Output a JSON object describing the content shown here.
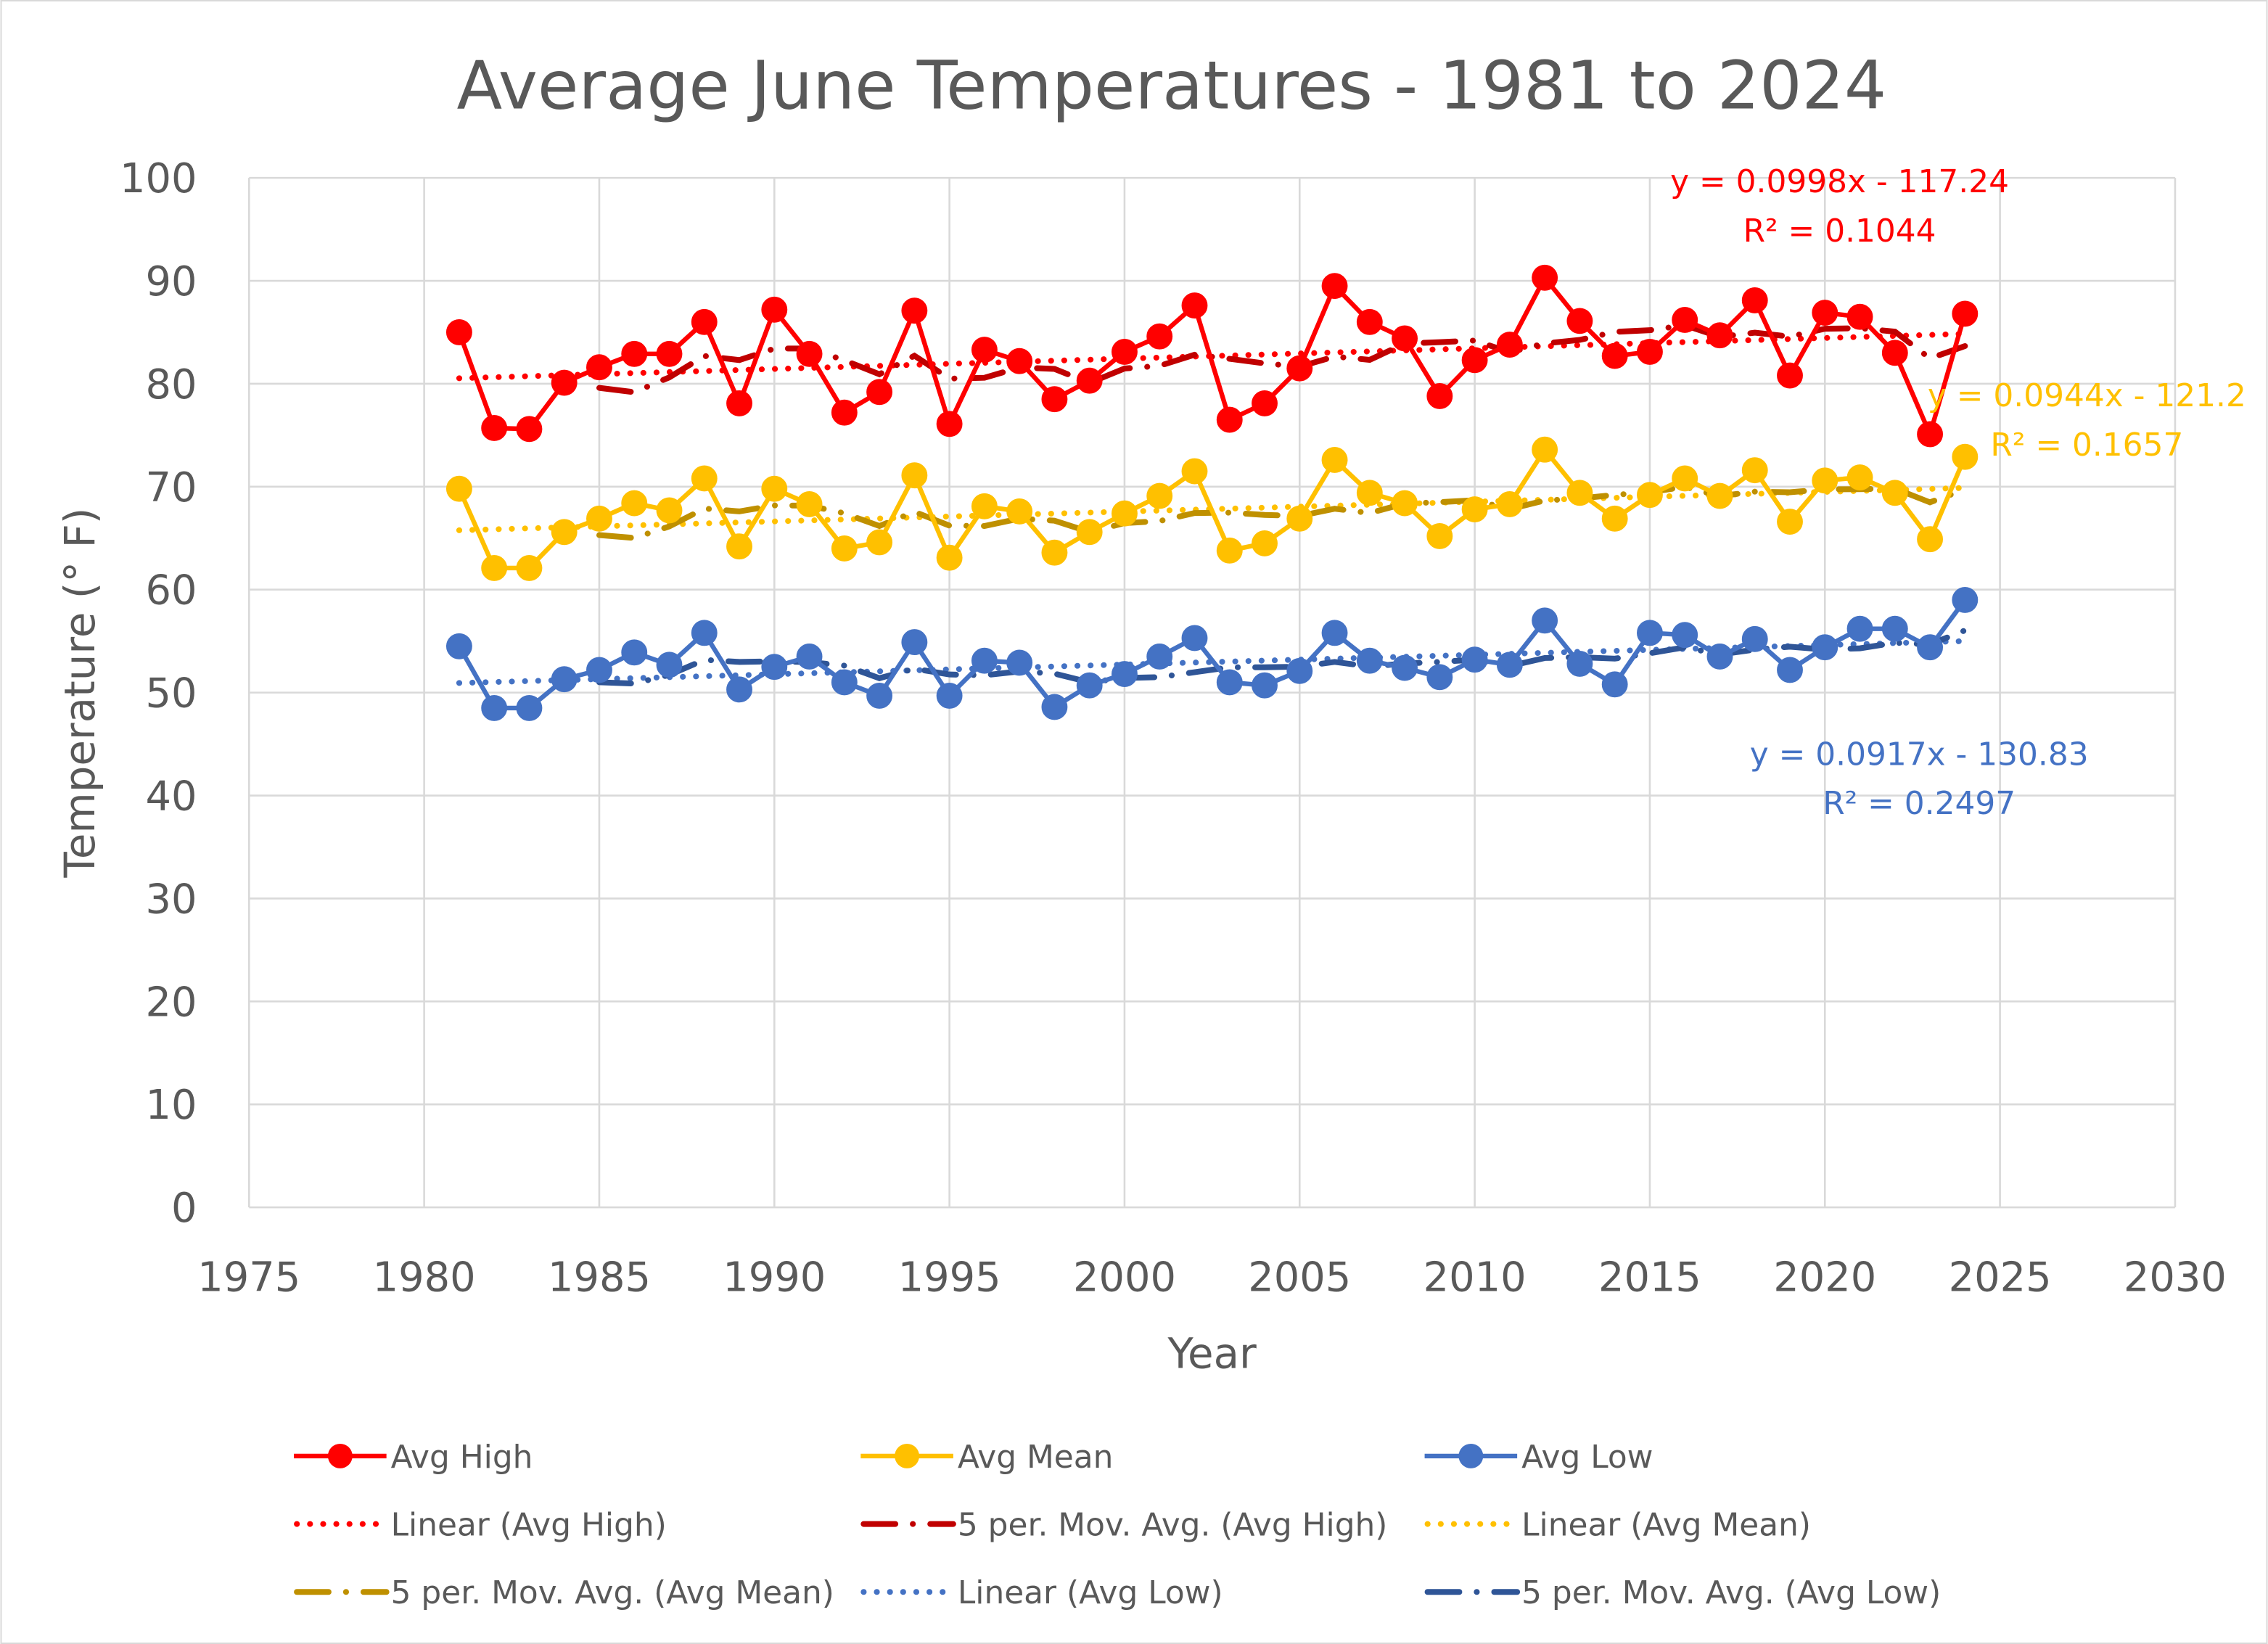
{
  "chart_data": {
    "type": "line",
    "title": "Average June Temperatures - 1981 to 2024",
    "xlabel": "Year",
    "ylabel": "Temperature (° F)",
    "xlim": [
      1975,
      2030
    ],
    "ylim": [
      0,
      100
    ],
    "x_ticks": [
      1975,
      1980,
      1985,
      1990,
      1995,
      2000,
      2005,
      2010,
      2015,
      2020,
      2025,
      2030
    ],
    "y_ticks": [
      0,
      10,
      20,
      30,
      40,
      50,
      60,
      70,
      80,
      90,
      100
    ],
    "grid": true,
    "legend_position": "bottom",
    "x": [
      1981,
      1982,
      1983,
      1984,
      1985,
      1986,
      1987,
      1988,
      1989,
      1990,
      1991,
      1992,
      1993,
      1994,
      1995,
      1996,
      1997,
      1998,
      1999,
      2000,
      2001,
      2002,
      2003,
      2004,
      2005,
      2006,
      2007,
      2008,
      2009,
      2010,
      2011,
      2012,
      2013,
      2014,
      2015,
      2016,
      2017,
      2018,
      2019,
      2020,
      2021,
      2022,
      2023,
      2024
    ],
    "series": [
      {
        "name": "Avg High",
        "color": "#FF0000",
        "ma_color": "#C00000",
        "linear_label": "Linear (Avg High)",
        "ma_label": "5 per. Mov. Avg. (Avg High)",
        "equation": "y = 0.0998x - 117.24",
        "r2": "R² = 0.1044",
        "values": [
          85.0,
          75.7,
          75.6,
          80.1,
          81.6,
          82.9,
          82.9,
          86.0,
          78.1,
          87.2,
          82.9,
          77.2,
          79.2,
          87.1,
          76.1,
          83.3,
          82.2,
          78.5,
          80.3,
          83.1,
          84.6,
          87.6,
          76.5,
          78.1,
          81.5,
          89.5,
          86.0,
          84.4,
          78.8,
          82.3,
          83.8,
          90.3,
          86.1,
          82.7,
          83.1,
          86.2,
          84.7,
          88.1,
          80.8,
          86.9,
          86.5,
          83.0,
          75.1,
          86.8
        ]
      },
      {
        "name": "Avg Mean",
        "color": "#FFC000",
        "ma_color": "#BF9000",
        "linear_label": "Linear (Avg Mean)",
        "ma_label": "5 per. Mov. Avg. (Avg Mean)",
        "equation": "y = 0.0944x - 121.2",
        "r2": "R² = 0.1657",
        "values": [
          69.8,
          62.1,
          62.1,
          65.6,
          66.9,
          68.4,
          67.7,
          70.8,
          64.2,
          69.8,
          68.3,
          64.0,
          64.6,
          71.1,
          63.1,
          68.1,
          67.6,
          63.6,
          65.6,
          67.4,
          69.1,
          71.5,
          63.8,
          64.5,
          66.9,
          72.6,
          69.4,
          68.4,
          65.2,
          67.8,
          68.3,
          73.6,
          69.4,
          66.9,
          69.2,
          70.8,
          69.1,
          71.6,
          66.6,
          70.6,
          70.9,
          69.4,
          64.9,
          72.9
        ]
      },
      {
        "name": "Avg Low",
        "color": "#4472C4",
        "ma_color": "#2F5597",
        "linear_label": "Linear (Avg Low)",
        "ma_label": "5 per. Mov. Avg. (Avg Low)",
        "equation": "y = 0.0917x - 130.83",
        "r2": "R² = 0.2497",
        "values": [
          54.5,
          48.5,
          48.5,
          51.3,
          52.2,
          53.9,
          52.7,
          55.8,
          50.3,
          52.5,
          53.5,
          51.0,
          49.7,
          54.9,
          49.7,
          53.1,
          52.9,
          48.6,
          50.7,
          51.8,
          53.5,
          55.3,
          51.0,
          50.7,
          52.1,
          55.8,
          53.1,
          52.4,
          51.5,
          53.2,
          52.7,
          57.0,
          52.8,
          50.8,
          55.8,
          55.6,
          53.5,
          55.2,
          52.2,
          54.4,
          56.2,
          56.2,
          54.4,
          59.0
        ]
      }
    ]
  }
}
